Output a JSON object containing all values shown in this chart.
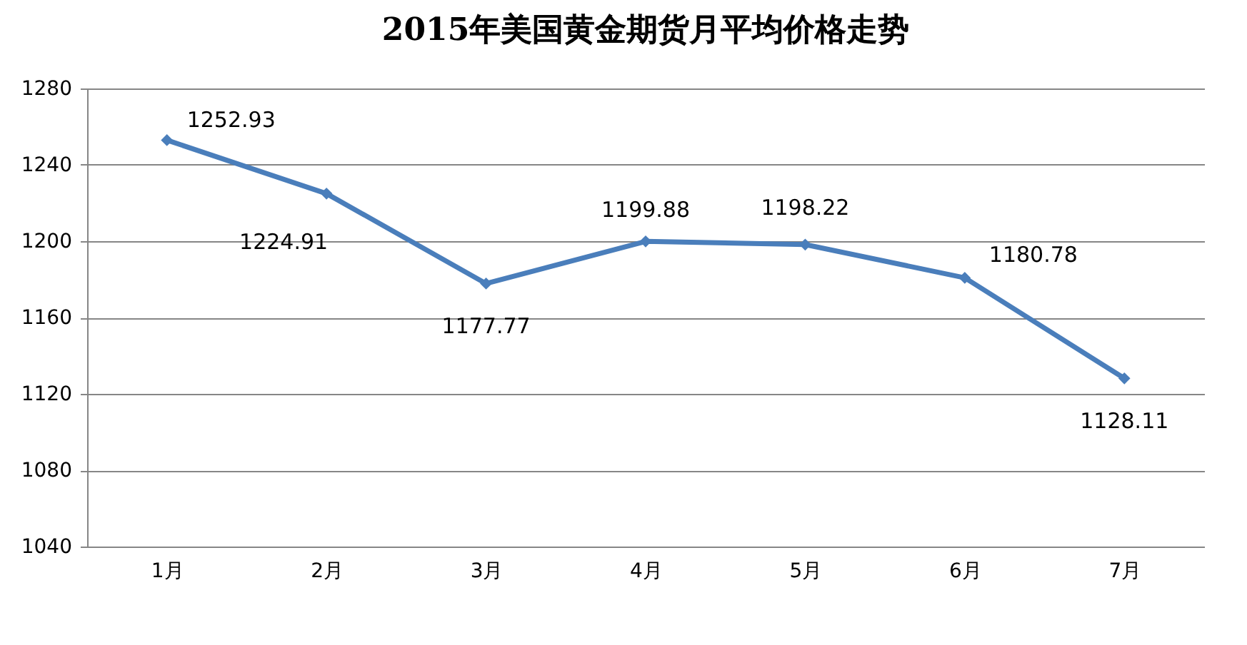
{
  "chart_data": {
    "type": "line",
    "title": "2015年美国黄金期货月平均价格走势",
    "categories": [
      "1月",
      "2月",
      "3月",
      "4月",
      "5月",
      "6月",
      "7月"
    ],
    "series": [
      {
        "color": "#4a7ebb",
        "values": [
          1252.93,
          1224.91,
          1177.77,
          1199.88,
          1198.22,
          1180.78,
          1128.11
        ]
      }
    ],
    "ylim": [
      1040,
      1280
    ],
    "yticks": [
      1040,
      1080,
      1120,
      1160,
      1200,
      1240,
      1280
    ],
    "grid": "y",
    "marker": "diamond",
    "data_labels": true
  }
}
